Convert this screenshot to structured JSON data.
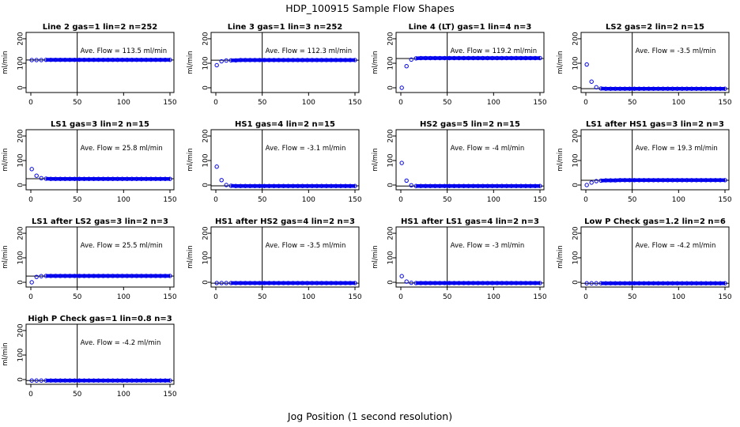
{
  "figure": {
    "title": "HDP_100915  Sample Flow Shapes",
    "xlabel": "Jog Position (1 second resolution)"
  },
  "style": {
    "point_color": "#0000ee",
    "axis_color": "#000000",
    "background": "#ffffff"
  },
  "chart_data": [
    {
      "type": "scatter",
      "title": "Line 2 gas=1 lin=2 n=252",
      "ylabel": "ml/min",
      "annotation": "Ave. Flow =  113.5  ml/min",
      "xlim": [
        0,
        150
      ],
      "ylim": [
        -25,
        215
      ],
      "xticks": [
        0,
        50,
        100,
        150
      ],
      "yticks": [
        0,
        100,
        200
      ],
      "vline": 50,
      "hline": 113.5,
      "values": [
        113,
        113,
        113,
        114,
        114,
        114,
        114,
        114,
        114,
        114,
        114,
        114,
        114,
        114,
        114,
        114,
        114,
        114,
        114,
        114,
        114,
        114,
        114,
        114,
        114,
        114,
        114,
        114,
        114,
        114
      ]
    },
    {
      "type": "scatter",
      "title": "Line 3 gas=1 lin=3 n=252",
      "ylabel": "ml/min",
      "annotation": "Ave. Flow =  112.3  ml/min",
      "xlim": [
        0,
        150
      ],
      "ylim": [
        -25,
        215
      ],
      "xticks": [
        0,
        50,
        100,
        150
      ],
      "yticks": [
        0,
        100,
        200
      ],
      "vline": 50,
      "hline": 112.3,
      "values": [
        92,
        108,
        111,
        112,
        112,
        113,
        113,
        113,
        113,
        113,
        113,
        113,
        113,
        113,
        113,
        113,
        113,
        113,
        113,
        113,
        113,
        113,
        113,
        113,
        113,
        113,
        113,
        113,
        113,
        113
      ]
    },
    {
      "type": "scatter",
      "title": "Line 4 (LT) gas=1 lin=4 n=3",
      "ylabel": "ml/min",
      "annotation": "Ave. Flow =  119.2  ml/min",
      "xlim": [
        0,
        150
      ],
      "ylim": [
        -25,
        215
      ],
      "xticks": [
        0,
        50,
        100,
        150
      ],
      "yticks": [
        0,
        100,
        200
      ],
      "vline": 50,
      "hline": 119.2,
      "values": [
        0,
        88,
        115,
        120,
        121,
        121,
        121,
        121,
        121,
        121,
        121,
        121,
        121,
        121,
        121,
        121,
        121,
        121,
        121,
        121,
        121,
        121,
        121,
        121,
        121,
        121,
        121,
        121,
        121,
        121
      ]
    },
    {
      "type": "scatter",
      "title": "LS2 gas=2 lin=2 n=15",
      "ylabel": "ml/min",
      "annotation": "Ave. Flow =  -3.5  ml/min",
      "xlim": [
        0,
        150
      ],
      "ylim": [
        -25,
        215
      ],
      "xticks": [
        0,
        50,
        100,
        150
      ],
      "yticks": [
        0,
        100,
        200
      ],
      "vline": 50,
      "hline": -3.5,
      "values": [
        95,
        25,
        2,
        -3,
        -4,
        -4,
        -4,
        -4,
        -4,
        -4,
        -4,
        -4,
        -4,
        -4,
        -4,
        -4,
        -4,
        -4,
        -4,
        -4,
        -4,
        -4,
        -4,
        -4,
        -4,
        -4,
        -4,
        -4,
        -4,
        -4
      ]
    },
    {
      "type": "scatter",
      "title": "LS1 gas=3 lin=2 n=15",
      "ylabel": "ml/min",
      "annotation": "Ave. Flow =  25.8  ml/min",
      "xlim": [
        0,
        150
      ],
      "ylim": [
        -25,
        215
      ],
      "xticks": [
        0,
        50,
        100,
        150
      ],
      "yticks": [
        0,
        100,
        200
      ],
      "vline": 50,
      "hline": 25.8,
      "values": [
        65,
        38,
        28,
        26,
        25,
        25,
        25,
        25,
        25,
        25,
        25,
        25,
        25,
        25,
        25,
        25,
        25,
        25,
        25,
        25,
        25,
        25,
        25,
        25,
        25,
        25,
        25,
        25,
        25,
        25
      ]
    },
    {
      "type": "scatter",
      "title": "HS1 gas=4 lin=2 n=15",
      "ylabel": "ml/min",
      "annotation": "Ave. Flow =  -3.1  ml/min",
      "xlim": [
        0,
        150
      ],
      "ylim": [
        -25,
        215
      ],
      "xticks": [
        0,
        50,
        100,
        150
      ],
      "yticks": [
        0,
        100,
        200
      ],
      "vline": 50,
      "hline": -3.1,
      "values": [
        75,
        20,
        0,
        -3,
        -4,
        -4,
        -4,
        -4,
        -4,
        -4,
        -4,
        -4,
        -4,
        -4,
        -4,
        -4,
        -4,
        -4,
        -4,
        -4,
        -4,
        -4,
        -4,
        -4,
        -4,
        -4,
        -4,
        -4,
        -4,
        -4
      ]
    },
    {
      "type": "scatter",
      "title": "HS2 gas=5 lin=2 n=15",
      "ylabel": "ml/min",
      "annotation": "Ave. Flow =  -4  ml/min",
      "xlim": [
        0,
        150
      ],
      "ylim": [
        -25,
        215
      ],
      "xticks": [
        0,
        50,
        100,
        150
      ],
      "yticks": [
        0,
        100,
        200
      ],
      "vline": 50,
      "hline": -4,
      "values": [
        90,
        18,
        -1,
        -4,
        -4,
        -4,
        -4,
        -4,
        -4,
        -4,
        -4,
        -4,
        -4,
        -4,
        -4,
        -4,
        -4,
        -4,
        -4,
        -4,
        -4,
        -4,
        -4,
        -4,
        -4,
        -4,
        -4,
        -4,
        -4,
        -4
      ]
    },
    {
      "type": "scatter",
      "title": "LS1 after HS1 gas=3 lin=2 n=3",
      "ylabel": "ml/min",
      "annotation": "Ave. Flow =  19.3  ml/min",
      "xlim": [
        0,
        150
      ],
      "ylim": [
        -25,
        215
      ],
      "xticks": [
        0,
        50,
        100,
        150
      ],
      "yticks": [
        0,
        100,
        200
      ],
      "vline": 50,
      "hline": 19.3,
      "values": [
        0,
        10,
        16,
        18,
        19,
        19,
        19,
        20,
        20,
        20,
        20,
        20,
        20,
        20,
        20,
        20,
        20,
        20,
        20,
        20,
        20,
        20,
        20,
        20,
        20,
        20,
        20,
        20,
        20,
        20
      ]
    },
    {
      "type": "scatter",
      "title": "LS1 after LS2 gas=3 lin=2 n=3",
      "ylabel": "ml/min",
      "annotation": "Ave. Flow =  25.5  ml/min",
      "xlim": [
        0,
        150
      ],
      "ylim": [
        -25,
        215
      ],
      "xticks": [
        0,
        50,
        100,
        150
      ],
      "yticks": [
        0,
        100,
        200
      ],
      "vline": 50,
      "hline": 25.5,
      "values": [
        0,
        22,
        25,
        26,
        26,
        26,
        26,
        26,
        26,
        26,
        26,
        26,
        26,
        26,
        26,
        26,
        26,
        26,
        26,
        26,
        26,
        26,
        26,
        26,
        26,
        26,
        26,
        26,
        26,
        26
      ]
    },
    {
      "type": "scatter",
      "title": "HS1 after HS2 gas=4 lin=2 n=3",
      "ylabel": "ml/min",
      "annotation": "Ave. Flow =  -3.5  ml/min",
      "xlim": [
        0,
        150
      ],
      "ylim": [
        -25,
        215
      ],
      "xticks": [
        0,
        50,
        100,
        150
      ],
      "yticks": [
        0,
        100,
        200
      ],
      "vline": 50,
      "hline": -3.5,
      "values": [
        -3,
        -3,
        -3,
        -3,
        -3,
        -3,
        -3,
        -3,
        -3,
        -3,
        -3,
        -3,
        -3,
        -3,
        -3,
        -3,
        -3,
        -3,
        -3,
        -3,
        -3,
        -3,
        -3,
        -3,
        -3,
        -3,
        -3,
        -3,
        -3,
        -3
      ]
    },
    {
      "type": "scatter",
      "title": "HS1 after LS1 gas=4 lin=2 n=3",
      "ylabel": "ml/min",
      "annotation": "Ave. Flow =  -3  ml/min",
      "xlim": [
        0,
        150
      ],
      "ylim": [
        -25,
        215
      ],
      "xticks": [
        0,
        50,
        100,
        150
      ],
      "yticks": [
        0,
        100,
        200
      ],
      "vline": 50,
      "hline": -3,
      "values": [
        25,
        3,
        -2,
        -3,
        -3,
        -3,
        -3,
        -3,
        -3,
        -3,
        -3,
        -3,
        -3,
        -3,
        -3,
        -3,
        -3,
        -3,
        -3,
        -3,
        -3,
        -3,
        -3,
        -3,
        -3,
        -3,
        -3,
        -3,
        -3,
        -3
      ]
    },
    {
      "type": "scatter",
      "title": "Low P Check gas=1.2 lin=2 n=6",
      "ylabel": "ml/min",
      "annotation": "Ave. Flow =  -4.2  ml/min",
      "xlim": [
        0,
        150
      ],
      "ylim": [
        -25,
        215
      ],
      "xticks": [
        0,
        50,
        100,
        150
      ],
      "yticks": [
        0,
        100,
        200
      ],
      "vline": 50,
      "hline": -4.2,
      "values": [
        -4,
        -4,
        -4,
        -4,
        -4,
        -4,
        -4,
        -4,
        -4,
        -4,
        -4,
        -4,
        -4,
        -4,
        -4,
        -4,
        -4,
        -4,
        -4,
        -4,
        -4,
        -4,
        -4,
        -4,
        -4,
        -4,
        -4,
        -4,
        -4,
        -4
      ]
    },
    {
      "type": "scatter",
      "title": "High P Check gas=1 lin=0.8 n=3",
      "ylabel": "ml/min",
      "annotation": "Ave. Flow =  -4.2  ml/min",
      "xlim": [
        0,
        150
      ],
      "ylim": [
        -25,
        215
      ],
      "xticks": [
        0,
        50,
        100,
        150
      ],
      "yticks": [
        0,
        100,
        200
      ],
      "vline": 50,
      "hline": -4.2,
      "values": [
        -4,
        -4,
        -4,
        -4,
        -4,
        -4,
        -4,
        -4,
        -4,
        -4,
        -4,
        -4,
        -4,
        -4,
        -4,
        -4,
        -4,
        -4,
        -4,
        -4,
        -4,
        -4,
        -4,
        -4,
        -4,
        -4,
        -4,
        -4,
        -4,
        -4
      ]
    }
  ]
}
